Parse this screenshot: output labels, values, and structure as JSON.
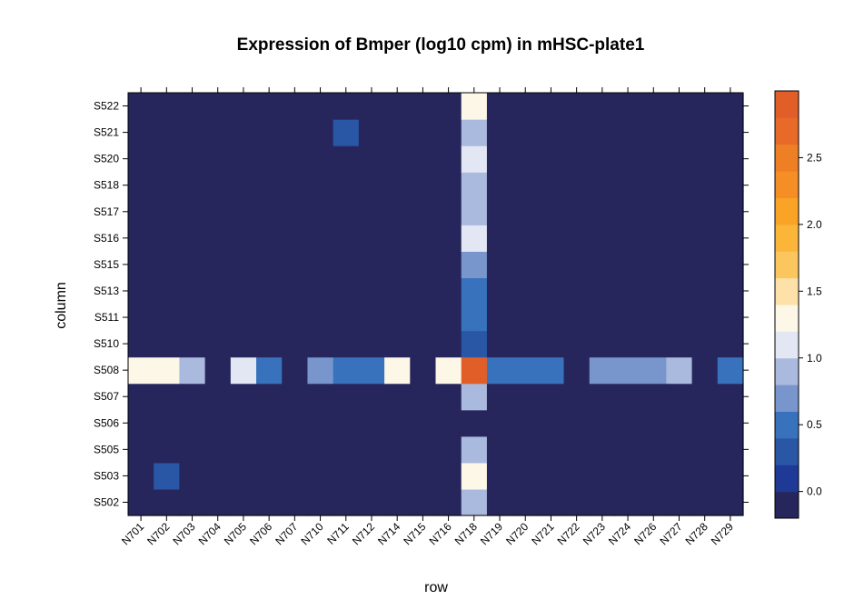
{
  "chart_data": {
    "type": "heatmap",
    "title": "Expression of Bmper (log10 cpm) in mHSC-plate1",
    "xlabel": "row",
    "ylabel": "column",
    "x_categories": [
      "N701",
      "N702",
      "N703",
      "N704",
      "N705",
      "N706",
      "N707",
      "N710",
      "N711",
      "N712",
      "N714",
      "N715",
      "N716",
      "N718",
      "N719",
      "N720",
      "N721",
      "N722",
      "N723",
      "N724",
      "N726",
      "N727",
      "N728",
      "N729"
    ],
    "y_categories": [
      "S502",
      "S503",
      "S505",
      "S506",
      "S507",
      "S508",
      "S510",
      "S511",
      "S513",
      "S515",
      "S516",
      "S517",
      "S518",
      "S520",
      "S521",
      "S522"
    ],
    "colorbar": {
      "range": [
        -0.2,
        3.0
      ],
      "ticks": [
        0.0,
        0.5,
        1.0,
        1.5,
        2.0,
        2.5
      ],
      "tick_labels": [
        "0.0",
        "0.5",
        "1.0",
        "1.5",
        "2.0",
        "2.5"
      ],
      "colors": [
        "#26265C",
        "#1E3A96",
        "#2A56A6",
        "#3872BC",
        "#7896CC",
        "#AAB9DE",
        "#E3E7F3",
        "#FCF7E6",
        "#FDE1A8",
        "#FCC65E",
        "#FBB63A",
        "#F9A427",
        "#F58E24",
        "#EF7F25",
        "#E86A28",
        "#E25E28"
      ]
    },
    "background_value": -0.05,
    "cells": [
      {
        "row": "N701",
        "column": "S508",
        "value": 1.3
      },
      {
        "row": "N702",
        "column": "S508",
        "value": 1.3
      },
      {
        "row": "N702",
        "column": "S503",
        "value": 0.3
      },
      {
        "row": "N703",
        "column": "S508",
        "value": 0.9
      },
      {
        "row": "N705",
        "column": "S508",
        "value": 1.1
      },
      {
        "row": "N706",
        "column": "S508",
        "value": 0.5
      },
      {
        "row": "N710",
        "column": "S508",
        "value": 0.7
      },
      {
        "row": "N711",
        "column": "S508",
        "value": 0.4
      },
      {
        "row": "N711",
        "column": "S521",
        "value": 0.3
      },
      {
        "row": "N712",
        "column": "S508",
        "value": 0.5
      },
      {
        "row": "N714",
        "column": "S508",
        "value": 1.3
      },
      {
        "row": "N716",
        "column": "S508",
        "value": 1.3
      },
      {
        "row": "N718",
        "column": "S522",
        "value": 1.3
      },
      {
        "row": "N718",
        "column": "S521",
        "value": 0.9
      },
      {
        "row": "N718",
        "column": "S520",
        "value": 1.1
      },
      {
        "row": "N718",
        "column": "S518",
        "value": 0.9
      },
      {
        "row": "N718",
        "column": "S517",
        "value": 0.9
      },
      {
        "row": "N718",
        "column": "S516",
        "value": 1.1
      },
      {
        "row": "N718",
        "column": "S515",
        "value": 0.7
      },
      {
        "row": "N718",
        "column": "S513",
        "value": 0.5
      },
      {
        "row": "N718",
        "column": "S511",
        "value": 0.5
      },
      {
        "row": "N718",
        "column": "S510",
        "value": 0.3
      },
      {
        "row": "N718",
        "column": "S508",
        "value": 2.9
      },
      {
        "row": "N718",
        "column": "S507",
        "value": 0.9
      },
      {
        "row": "N718",
        "column": "S505",
        "value": 0.9
      },
      {
        "row": "N718",
        "column": "S503",
        "value": 1.3
      },
      {
        "row": "N718",
        "column": "S502",
        "value": 0.9
      },
      {
        "row": "N719",
        "column": "S508",
        "value": 0.4
      },
      {
        "row": "N720",
        "column": "S508",
        "value": 0.4
      },
      {
        "row": "N721",
        "column": "S508",
        "value": 0.5
      },
      {
        "row": "N723",
        "column": "S508",
        "value": 0.7
      },
      {
        "row": "N724",
        "column": "S508",
        "value": 0.7
      },
      {
        "row": "N726",
        "column": "S508",
        "value": 0.7
      },
      {
        "row": "N727",
        "column": "S508",
        "value": 0.9
      },
      {
        "row": "N729",
        "column": "S508",
        "value": 0.5
      }
    ]
  }
}
